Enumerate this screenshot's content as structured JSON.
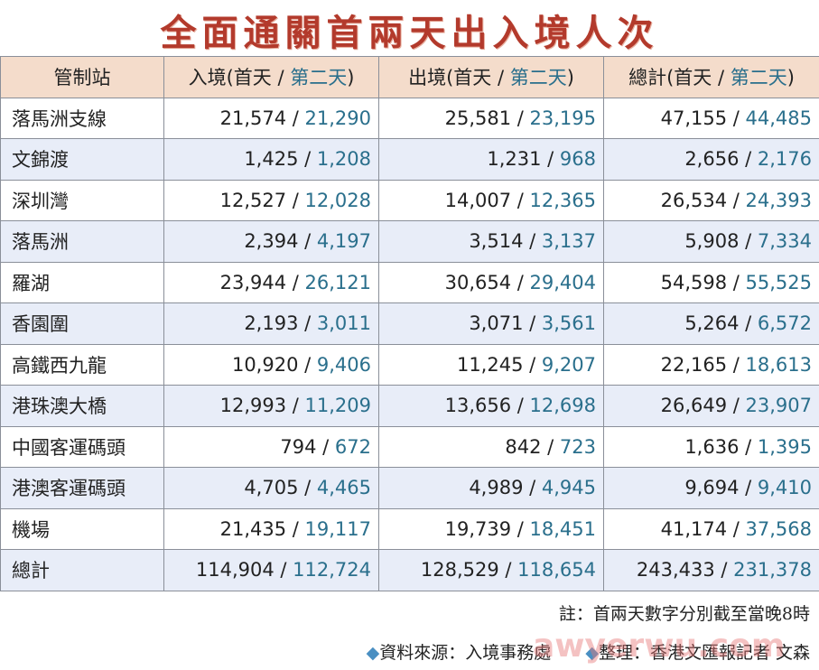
{
  "title": "全面通關首兩天出入境人次",
  "headers": {
    "station": "管制站",
    "cols": [
      {
        "pre": "入境(首天 / ",
        "day2": "第二天",
        "post": ")"
      },
      {
        "pre": "出境(首天 / ",
        "day2": "第二天",
        "post": ")"
      },
      {
        "pre": "總計(首天 / ",
        "day2": "第二天",
        "post": ")"
      }
    ]
  },
  "rows": [
    {
      "name": "落馬洲支線",
      "v": [
        [
          "21,574",
          "21,290"
        ],
        [
          "25,581",
          "23,195"
        ],
        [
          "47,155",
          "44,485"
        ]
      ]
    },
    {
      "name": "文錦渡",
      "v": [
        [
          "1,425",
          "1,208"
        ],
        [
          "1,231",
          "968"
        ],
        [
          "2,656",
          "2,176"
        ]
      ]
    },
    {
      "name": "深圳灣",
      "v": [
        [
          "12,527",
          "12,028"
        ],
        [
          "14,007",
          "12,365"
        ],
        [
          "26,534",
          "24,393"
        ]
      ]
    },
    {
      "name": "落馬洲",
      "v": [
        [
          "2,394",
          "4,197"
        ],
        [
          "3,514",
          "3,137"
        ],
        [
          "5,908",
          "7,334"
        ]
      ]
    },
    {
      "name": "羅湖",
      "v": [
        [
          "23,944",
          "26,121"
        ],
        [
          "30,654",
          "29,404"
        ],
        [
          "54,598",
          "55,525"
        ]
      ]
    },
    {
      "name": "香園圍",
      "v": [
        [
          "2,193",
          "3,011"
        ],
        [
          "3,071",
          "3,561"
        ],
        [
          "5,264",
          "6,572"
        ]
      ]
    },
    {
      "name": "高鐵西九龍",
      "v": [
        [
          "10,920",
          "9,406"
        ],
        [
          "11,245",
          "9,207"
        ],
        [
          "22,165",
          "18,613"
        ]
      ]
    },
    {
      "name": "港珠澳大橋",
      "v": [
        [
          "12,993",
          "11,209"
        ],
        [
          "13,656",
          "12,698"
        ],
        [
          "26,649",
          "23,907"
        ]
      ]
    },
    {
      "name": "中國客運碼頭",
      "v": [
        [
          "794",
          "672"
        ],
        [
          "842",
          "723"
        ],
        [
          "1,636",
          "1,395"
        ]
      ]
    },
    {
      "name": "港澳客運碼頭",
      "v": [
        [
          "4,705",
          "4,465"
        ],
        [
          "4,989",
          "4,945"
        ],
        [
          "9,694",
          "9,410"
        ]
      ]
    },
    {
      "name": "機場",
      "v": [
        [
          "21,435",
          "19,117"
        ],
        [
          "19,739",
          "18,451"
        ],
        [
          "41,174",
          "37,568"
        ]
      ]
    },
    {
      "name": "總計",
      "v": [
        [
          "114,904",
          "112,724"
        ],
        [
          "128,529",
          "118,654"
        ],
        [
          "243,433",
          "231,378"
        ]
      ]
    }
  ],
  "note": "註：首兩天數字分別截至當晚8時",
  "source": "資料來源：入境事務處",
  "editor": "整理：香港文匯報記者 文森",
  "watermark": "awyerwu.com"
}
